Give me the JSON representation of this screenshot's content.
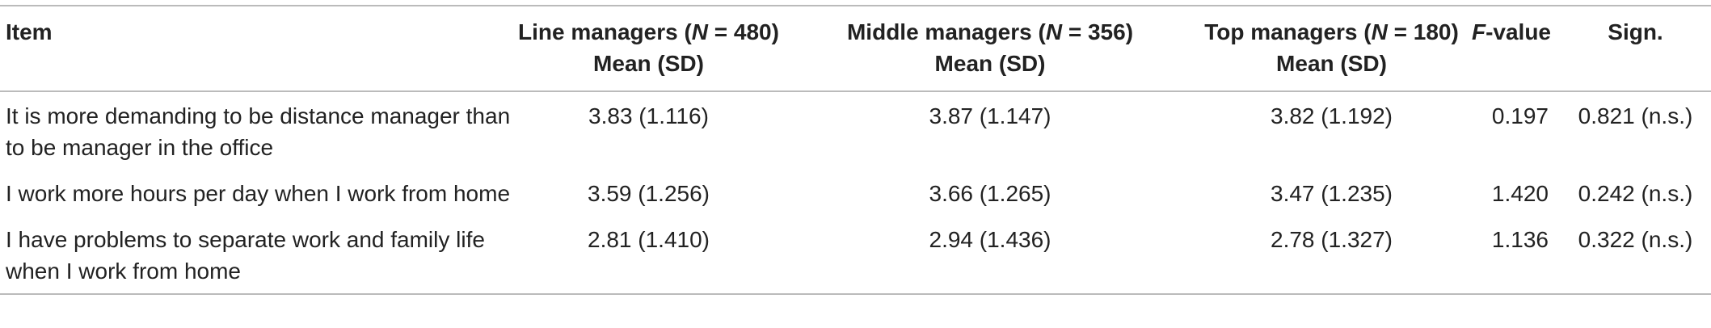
{
  "table": {
    "header": {
      "item": "Item",
      "groups": [
        {
          "parts": [
            "Line managers (",
            "N",
            " = 480)"
          ],
          "sub": "Mean (SD)"
        },
        {
          "parts": [
            "Middle managers (",
            "N",
            " = 356)"
          ],
          "sub": "Mean (SD)"
        },
        {
          "parts": [
            "Top managers (",
            "N",
            " = 180)"
          ],
          "sub": "Mean (SD)"
        }
      ],
      "f_value": [
        "F",
        "-value"
      ],
      "sign": "Sign."
    },
    "rows": [
      [
        "It is more demanding to be distance manager than to be manager in the office",
        "3.83 (1.116)",
        "3.87 (1.147)",
        "3.82 (1.192)",
        "0.197",
        "0.821 (n.s.)"
      ],
      [
        "I work more hours per day when I work from home",
        "3.59 (1.256)",
        "3.66 (1.265)",
        "3.47 (1.235)",
        "1.420",
        "0.242 (n.s.)"
      ],
      [
        "I have problems to separate work and family life when I work from home",
        "2.81 (1.410)",
        "2.94 (1.436)",
        "2.78 (1.327)",
        "1.136",
        "0.322 (n.s.)"
      ]
    ]
  }
}
